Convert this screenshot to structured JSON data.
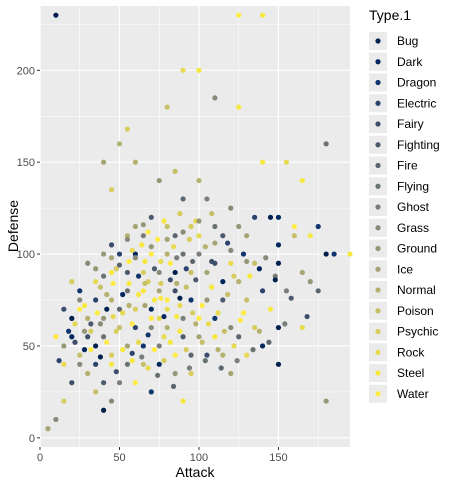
{
  "chart_data": {
    "type": "scatter",
    "xlabel": "Attack",
    "ylabel": "Defense",
    "xlim": [
      0,
      195
    ],
    "ylim": [
      -5,
      235
    ],
    "x_ticks": [
      0,
      50,
      100,
      150
    ],
    "y_ticks": [
      0,
      50,
      100,
      150,
      200
    ],
    "grid": true,
    "legend": {
      "title": "Type.1",
      "placement": "right",
      "entries": [
        {
          "name": "Bug",
          "color": "#00204d"
        },
        {
          "name": "Dark",
          "color": "#00275e"
        },
        {
          "name": "Dragon",
          "color": "#0f356f"
        },
        {
          "name": "Electric",
          "color": "#2b426d"
        },
        {
          "name": "Fairy",
          "color": "#3d4e6c"
        },
        {
          "name": "Fighting",
          "color": "#4d5a6d"
        },
        {
          "name": "Fire",
          "color": "#5c666f"
        },
        {
          "name": "Flying",
          "color": "#6a7274"
        },
        {
          "name": "Ghost",
          "color": "#787e78"
        },
        {
          "name": "Grass",
          "color": "#878a78"
        },
        {
          "name": "Ground",
          "color": "#969776"
        },
        {
          "name": "Ice",
          "color": "#a6a473"
        },
        {
          "name": "Normal",
          "color": "#b5b16e"
        },
        {
          "name": "Poison",
          "color": "#c6bf67"
        },
        {
          "name": "Psychic",
          "color": "#d7cc5e"
        },
        {
          "name": "Rock",
          "color": "#e7da50"
        },
        {
          "name": "Steel",
          "color": "#f6e83e"
        },
        {
          "name": "Water",
          "color": "#ffea46"
        }
      ]
    },
    "points": [
      [
        10,
        230,
        0
      ],
      [
        125,
        230,
        17
      ],
      [
        140,
        230,
        16
      ],
      [
        90,
        200,
        15
      ],
      [
        100,
        200,
        16
      ],
      [
        110,
        185,
        9
      ],
      [
        125,
        180,
        16
      ],
      [
        80,
        180,
        13
      ],
      [
        50,
        160,
        12
      ],
      [
        55,
        168,
        14
      ],
      [
        180,
        160,
        7
      ],
      [
        40,
        150,
        11
      ],
      [
        60,
        150,
        12
      ],
      [
        85,
        145,
        13
      ],
      [
        140,
        150,
        16
      ],
      [
        155,
        150,
        15
      ],
      [
        165,
        140,
        16
      ],
      [
        75,
        140,
        10
      ],
      [
        45,
        135,
        14
      ],
      [
        100,
        140,
        12
      ],
      [
        90,
        130,
        6
      ],
      [
        105,
        130,
        8
      ],
      [
        120,
        125,
        9
      ],
      [
        70,
        120,
        5
      ],
      [
        135,
        120,
        3
      ],
      [
        60,
        115,
        11
      ],
      [
        80,
        115,
        13
      ],
      [
        95,
        115,
        14
      ],
      [
        110,
        115,
        7
      ],
      [
        125,
        115,
        10
      ],
      [
        145,
        120,
        0
      ],
      [
        150,
        120,
        1
      ],
      [
        160,
        115,
        17
      ],
      [
        175,
        115,
        2
      ],
      [
        170,
        110,
        16
      ],
      [
        45,
        105,
        4
      ],
      [
        55,
        110,
        12
      ],
      [
        65,
        110,
        8
      ],
      [
        85,
        110,
        6
      ],
      [
        100,
        110,
        15
      ],
      [
        115,
        110,
        5
      ],
      [
        130,
        110,
        11
      ],
      [
        150,
        105,
        1
      ],
      [
        160,
        110,
        13
      ],
      [
        180,
        100,
        0
      ],
      [
        185,
        100,
        2
      ],
      [
        195,
        100,
        16
      ],
      [
        20,
        85,
        14
      ],
      [
        30,
        95,
        9
      ],
      [
        40,
        100,
        10
      ],
      [
        50,
        100,
        3
      ],
      [
        60,
        100,
        1
      ],
      [
        70,
        100,
        17
      ],
      [
        80,
        100,
        12
      ],
      [
        90,
        100,
        7
      ],
      [
        100,
        100,
        8
      ],
      [
        110,
        95,
        4
      ],
      [
        120,
        95,
        15
      ],
      [
        135,
        95,
        13
      ],
      [
        150,
        95,
        0
      ],
      [
        165,
        90,
        11
      ],
      [
        170,
        85,
        10
      ],
      [
        175,
        80,
        6
      ],
      [
        25,
        80,
        2
      ],
      [
        35,
        85,
        15
      ],
      [
        45,
        90,
        16
      ],
      [
        55,
        90,
        5
      ],
      [
        65,
        90,
        14
      ],
      [
        75,
        90,
        9
      ],
      [
        85,
        90,
        0
      ],
      [
        95,
        90,
        13
      ],
      [
        105,
        90,
        11
      ],
      [
        115,
        85,
        1
      ],
      [
        125,
        85,
        12
      ],
      [
        140,
        80,
        3
      ],
      [
        155,
        80,
        8
      ],
      [
        15,
        70,
        4
      ],
      [
        25,
        70,
        17
      ],
      [
        35,
        75,
        3
      ],
      [
        45,
        75,
        12
      ],
      [
        55,
        80,
        7
      ],
      [
        65,
        80,
        16
      ],
      [
        75,
        80,
        11
      ],
      [
        85,
        80,
        4
      ],
      [
        95,
        75,
        2
      ],
      [
        105,
        75,
        10
      ],
      [
        115,
        75,
        5
      ],
      [
        130,
        75,
        13
      ],
      [
        145,
        70,
        16
      ],
      [
        20,
        65,
        0
      ],
      [
        30,
        65,
        12
      ],
      [
        40,
        65,
        10
      ],
      [
        50,
        70,
        6
      ],
      [
        60,
        70,
        14
      ],
      [
        70,
        70,
        1
      ],
      [
        80,
        70,
        15
      ],
      [
        90,
        65,
        8
      ],
      [
        100,
        65,
        17
      ],
      [
        110,
        65,
        2
      ],
      [
        120,
        60,
        9
      ],
      [
        135,
        60,
        14
      ],
      [
        150,
        60,
        0
      ],
      [
        165,
        60,
        15
      ],
      [
        10,
        55,
        17
      ],
      [
        20,
        55,
        1
      ],
      [
        30,
        55,
        4
      ],
      [
        40,
        55,
        7
      ],
      [
        50,
        60,
        13
      ],
      [
        60,
        60,
        3
      ],
      [
        70,
        60,
        9
      ],
      [
        80,
        60,
        12
      ],
      [
        90,
        55,
        5
      ],
      [
        100,
        55,
        11
      ],
      [
        110,
        55,
        16
      ],
      [
        125,
        55,
        6
      ],
      [
        140,
        50,
        1
      ],
      [
        15,
        50,
        10
      ],
      [
        25,
        45,
        13
      ],
      [
        35,
        50,
        0
      ],
      [
        45,
        45,
        14
      ],
      [
        55,
        50,
        11
      ],
      [
        65,
        50,
        2
      ],
      [
        75,
        50,
        8
      ],
      [
        85,
        45,
        17
      ],
      [
        95,
        45,
        6
      ],
      [
        105,
        45,
        4
      ],
      [
        115,
        45,
        12
      ],
      [
        130,
        45,
        15
      ],
      [
        150,
        40,
        0
      ],
      [
        15,
        40,
        15
      ],
      [
        25,
        40,
        9
      ],
      [
        35,
        40,
        3
      ],
      [
        45,
        40,
        16
      ],
      [
        55,
        40,
        7
      ],
      [
        65,
        40,
        13
      ],
      [
        75,
        40,
        1
      ],
      [
        85,
        35,
        10
      ],
      [
        95,
        35,
        14
      ],
      [
        120,
        35,
        11
      ],
      [
        30,
        35,
        12
      ],
      [
        40,
        30,
        5
      ],
      [
        50,
        30,
        8
      ],
      [
        60,
        30,
        17
      ],
      [
        70,
        25,
        2
      ],
      [
        20,
        30,
        4
      ],
      [
        35,
        25,
        13
      ],
      [
        45,
        20,
        9
      ],
      [
        40,
        15,
        0
      ],
      [
        15,
        20,
        14
      ],
      [
        90,
        20,
        16
      ],
      [
        180,
        20,
        10
      ],
      [
        5,
        5,
        11
      ],
      [
        10,
        10,
        9
      ],
      [
        70,
        65,
        17
      ],
      [
        75,
        65,
        15
      ],
      [
        80,
        75,
        17
      ],
      [
        72,
        75,
        16
      ],
      [
        78,
        55,
        15
      ],
      [
        68,
        85,
        14
      ],
      [
        82,
        95,
        17
      ],
      [
        62,
        78,
        16
      ],
      [
        88,
        72,
        15
      ],
      [
        92,
        82,
        13
      ],
      [
        58,
        62,
        17
      ],
      [
        48,
        58,
        14
      ],
      [
        52,
        68,
        15
      ],
      [
        42,
        78,
        12
      ],
      [
        38,
        62,
        9
      ],
      [
        28,
        58,
        10
      ],
      [
        32,
        48,
        17
      ],
      [
        58,
        42,
        16
      ],
      [
        68,
        38,
        15
      ],
      [
        78,
        42,
        14
      ],
      [
        88,
        58,
        16
      ],
      [
        98,
        62,
        12
      ],
      [
        102,
        72,
        17
      ],
      [
        108,
        82,
        16
      ],
      [
        112,
        68,
        15
      ],
      [
        118,
        78,
        13
      ],
      [
        122,
        88,
        14
      ],
      [
        128,
        68,
        17
      ],
      [
        132,
        88,
        16
      ],
      [
        138,
        58,
        12
      ],
      [
        142,
        98,
        9
      ],
      [
        148,
        88,
        8
      ],
      [
        64,
        105,
        16
      ],
      [
        74,
        108,
        17
      ],
      [
        84,
        104,
        15
      ],
      [
        94,
        108,
        14
      ],
      [
        104,
        104,
        12
      ],
      [
        56,
        96,
        17
      ],
      [
        66,
        96,
        16
      ],
      [
        76,
        96,
        15
      ],
      [
        86,
        98,
        8
      ],
      [
        96,
        96,
        6
      ],
      [
        46,
        84,
        17
      ],
      [
        56,
        84,
        16
      ],
      [
        66,
        84,
        13
      ],
      [
        76,
        84,
        14
      ],
      [
        86,
        84,
        12
      ],
      [
        36,
        68,
        17
      ],
      [
        46,
        66,
        15
      ],
      [
        56,
        72,
        12
      ],
      [
        66,
        72,
        11
      ],
      [
        76,
        76,
        17
      ],
      [
        86,
        66,
        16
      ],
      [
        96,
        68,
        14
      ],
      [
        106,
        62,
        15
      ],
      [
        116,
        58,
        13
      ],
      [
        126,
        64,
        17
      ],
      [
        62,
        52,
        15
      ],
      [
        72,
        48,
        17
      ],
      [
        82,
        52,
        16
      ],
      [
        92,
        48,
        14
      ],
      [
        102,
        52,
        13
      ],
      [
        112,
        48,
        12
      ],
      [
        122,
        50,
        15
      ],
      [
        52,
        48,
        16
      ],
      [
        42,
        52,
        17
      ],
      [
        32,
        58,
        14
      ],
      [
        22,
        62,
        15
      ],
      [
        28,
        72,
        16
      ],
      [
        38,
        82,
        13
      ],
      [
        48,
        92,
        14
      ],
      [
        58,
        102,
        15
      ],
      [
        68,
        112,
        17
      ],
      [
        78,
        118,
        16
      ],
      [
        88,
        122,
        14
      ],
      [
        98,
        118,
        15
      ],
      [
        108,
        122,
        13
      ],
      [
        72,
        92,
        5
      ],
      [
        82,
        86,
        4
      ],
      [
        92,
        92,
        3
      ],
      [
        62,
        88,
        2
      ],
      [
        52,
        78,
        1
      ],
      [
        42,
        70,
        0
      ],
      [
        32,
        62,
        5
      ],
      [
        22,
        52,
        4
      ],
      [
        12,
        42,
        3
      ],
      [
        18,
        58,
        2
      ],
      [
        28,
        48,
        1
      ],
      [
        38,
        44,
        0
      ],
      [
        48,
        36,
        4
      ],
      [
        58,
        46,
        3
      ],
      [
        68,
        56,
        2
      ],
      [
        78,
        66,
        1
      ],
      [
        88,
        76,
        0
      ],
      [
        98,
        86,
        5
      ],
      [
        108,
        96,
        4
      ],
      [
        118,
        106,
        3
      ],
      [
        128,
        100,
        2
      ],
      [
        138,
        92,
        1
      ],
      [
        148,
        86,
        0
      ],
      [
        158,
        76,
        5
      ],
      [
        168,
        66,
        4
      ],
      [
        64,
        44,
        8
      ],
      [
        74,
        34,
        7
      ],
      [
        84,
        28,
        6
      ],
      [
        94,
        38,
        8
      ],
      [
        104,
        42,
        7
      ],
      [
        114,
        38,
        6
      ],
      [
        124,
        42,
        8
      ],
      [
        134,
        48,
        7
      ],
      [
        144,
        52,
        6
      ],
      [
        154,
        62,
        8
      ],
      [
        40,
        88,
        7
      ],
      [
        50,
        94,
        6
      ],
      [
        60,
        98,
        9
      ],
      [
        70,
        104,
        10
      ],
      [
        80,
        108,
        11
      ],
      [
        90,
        112,
        9
      ],
      [
        100,
        118,
        10
      ],
      [
        110,
        106,
        11
      ],
      [
        120,
        102,
        9
      ],
      [
        130,
        96,
        10
      ],
      [
        25,
        75,
        9
      ],
      [
        35,
        92,
        10
      ],
      [
        45,
        98,
        11
      ],
      [
        55,
        108,
        9
      ],
      [
        65,
        116,
        10
      ]
    ]
  }
}
